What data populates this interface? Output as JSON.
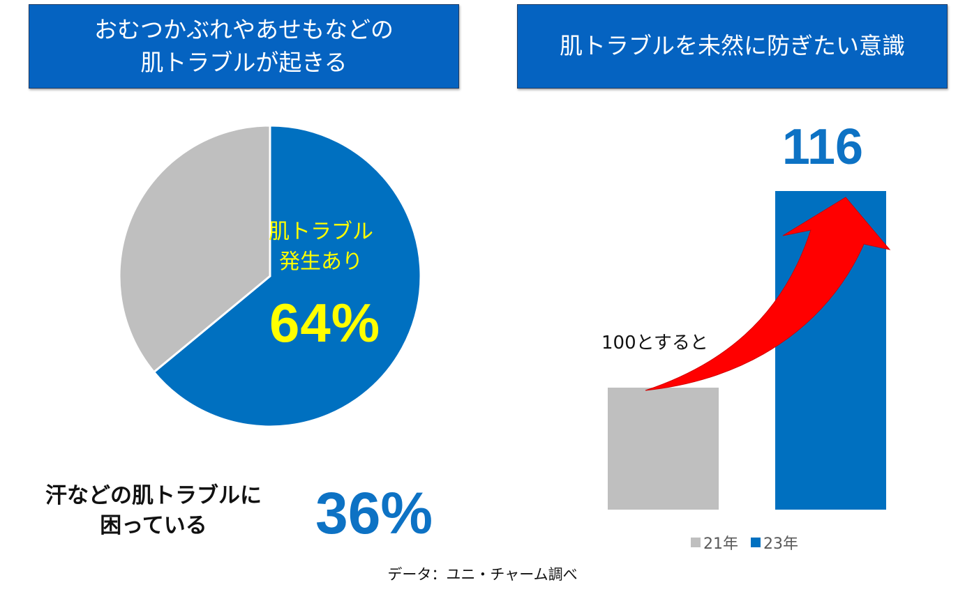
{
  "titles": {
    "left_lines": [
      "おむつかぶれやあせもなどの",
      "肌トラブルが起きる"
    ],
    "right": "肌トラブルを未然に防ぎたい意識"
  },
  "pie": {
    "label_lines": [
      "肌トラブル",
      "発生あり"
    ],
    "highlight_pct_text": "64%"
  },
  "note_left": {
    "lines": [
      "汗などの肌トラブルに",
      "困っている"
    ],
    "pct_text": "36%"
  },
  "bars": {
    "baseline_note": "100とすると",
    "value_label_23": "116"
  },
  "legend": [
    {
      "label": "21年",
      "color": "#bfbfbf"
    },
    {
      "label": "23年",
      "color": "#0070c0"
    }
  ],
  "source": "データ：ユニ・チャーム調べ",
  "colors": {
    "blue": "#0070c0",
    "gray": "#bfbfbf",
    "arrow": "#ff0000",
    "yellow": "#ffff00"
  },
  "chart_data": [
    {
      "type": "pie",
      "slices": [
        {
          "label": "肌トラブル発生あり",
          "value": 64,
          "color": "#0070c0"
        },
        {
          "label": "",
          "value": 36,
          "color": "#bfbfbf"
        }
      ]
    },
    {
      "type": "bar",
      "categories": [
        "21年",
        "23年"
      ],
      "values": [
        100,
        116
      ],
      "colors": [
        "#bfbfbf",
        "#0070c0"
      ]
    }
  ]
}
